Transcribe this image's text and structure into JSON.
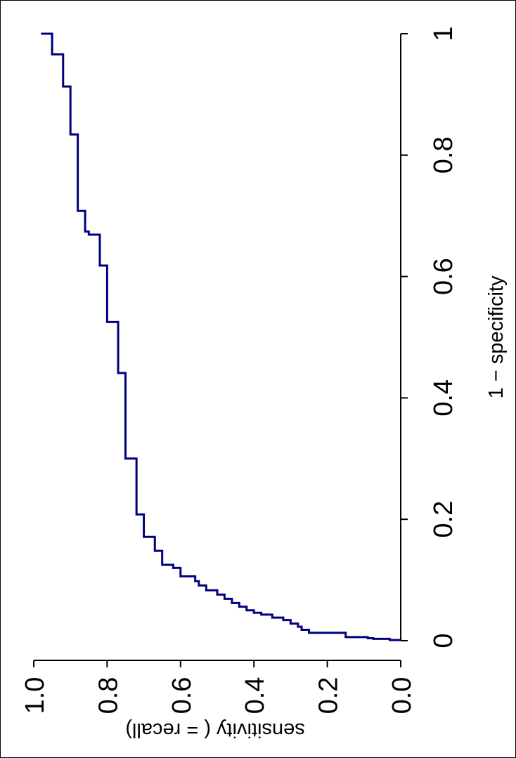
{
  "chart_data": {
    "type": "line",
    "step": true,
    "orientation": "rotated-90-clockwise",
    "xlabel": "1 − specificity",
    "ylabel": "sensitivity ( = recall)",
    "xlim": [
      0,
      1
    ],
    "ylim": [
      0,
      1
    ],
    "x_ticks": [
      "0",
      "0.2",
      "0.4",
      "0.6",
      "0.8",
      "1"
    ],
    "y_ticks": [
      "0.0",
      "0.2",
      "0.4",
      "0.6",
      "0.8",
      "1.0"
    ],
    "grid": false,
    "line_color": "#00007f",
    "points": [
      [
        0.0,
        0.0
      ],
      [
        0.001,
        0.03
      ],
      [
        0.003,
        0.075
      ],
      [
        0.004,
        0.09
      ],
      [
        0.006,
        0.15
      ],
      [
        0.013,
        0.155
      ],
      [
        0.013,
        0.25
      ],
      [
        0.018,
        0.27
      ],
      [
        0.023,
        0.28
      ],
      [
        0.028,
        0.3
      ],
      [
        0.034,
        0.32
      ],
      [
        0.038,
        0.35
      ],
      [
        0.043,
        0.35
      ],
      [
        0.043,
        0.38
      ],
      [
        0.046,
        0.4
      ],
      [
        0.05,
        0.42
      ],
      [
        0.056,
        0.44
      ],
      [
        0.062,
        0.46
      ],
      [
        0.069,
        0.48
      ],
      [
        0.076,
        0.5
      ],
      [
        0.083,
        0.53
      ],
      [
        0.091,
        0.55
      ],
      [
        0.098,
        0.56
      ],
      [
        0.106,
        0.6
      ],
      [
        0.12,
        0.62
      ],
      [
        0.125,
        0.65
      ],
      [
        0.148,
        0.67
      ],
      [
        0.171,
        0.7
      ],
      [
        0.208,
        0.72
      ],
      [
        0.3,
        0.75
      ],
      [
        0.441,
        0.77
      ],
      [
        0.525,
        0.8
      ],
      [
        0.618,
        0.82
      ],
      [
        0.669,
        0.85
      ],
      [
        0.674,
        0.86
      ],
      [
        0.708,
        0.88
      ],
      [
        0.834,
        0.9
      ],
      [
        0.913,
        0.92
      ],
      [
        0.966,
        0.95
      ],
      [
        1.0,
        0.98
      ]
    ]
  }
}
